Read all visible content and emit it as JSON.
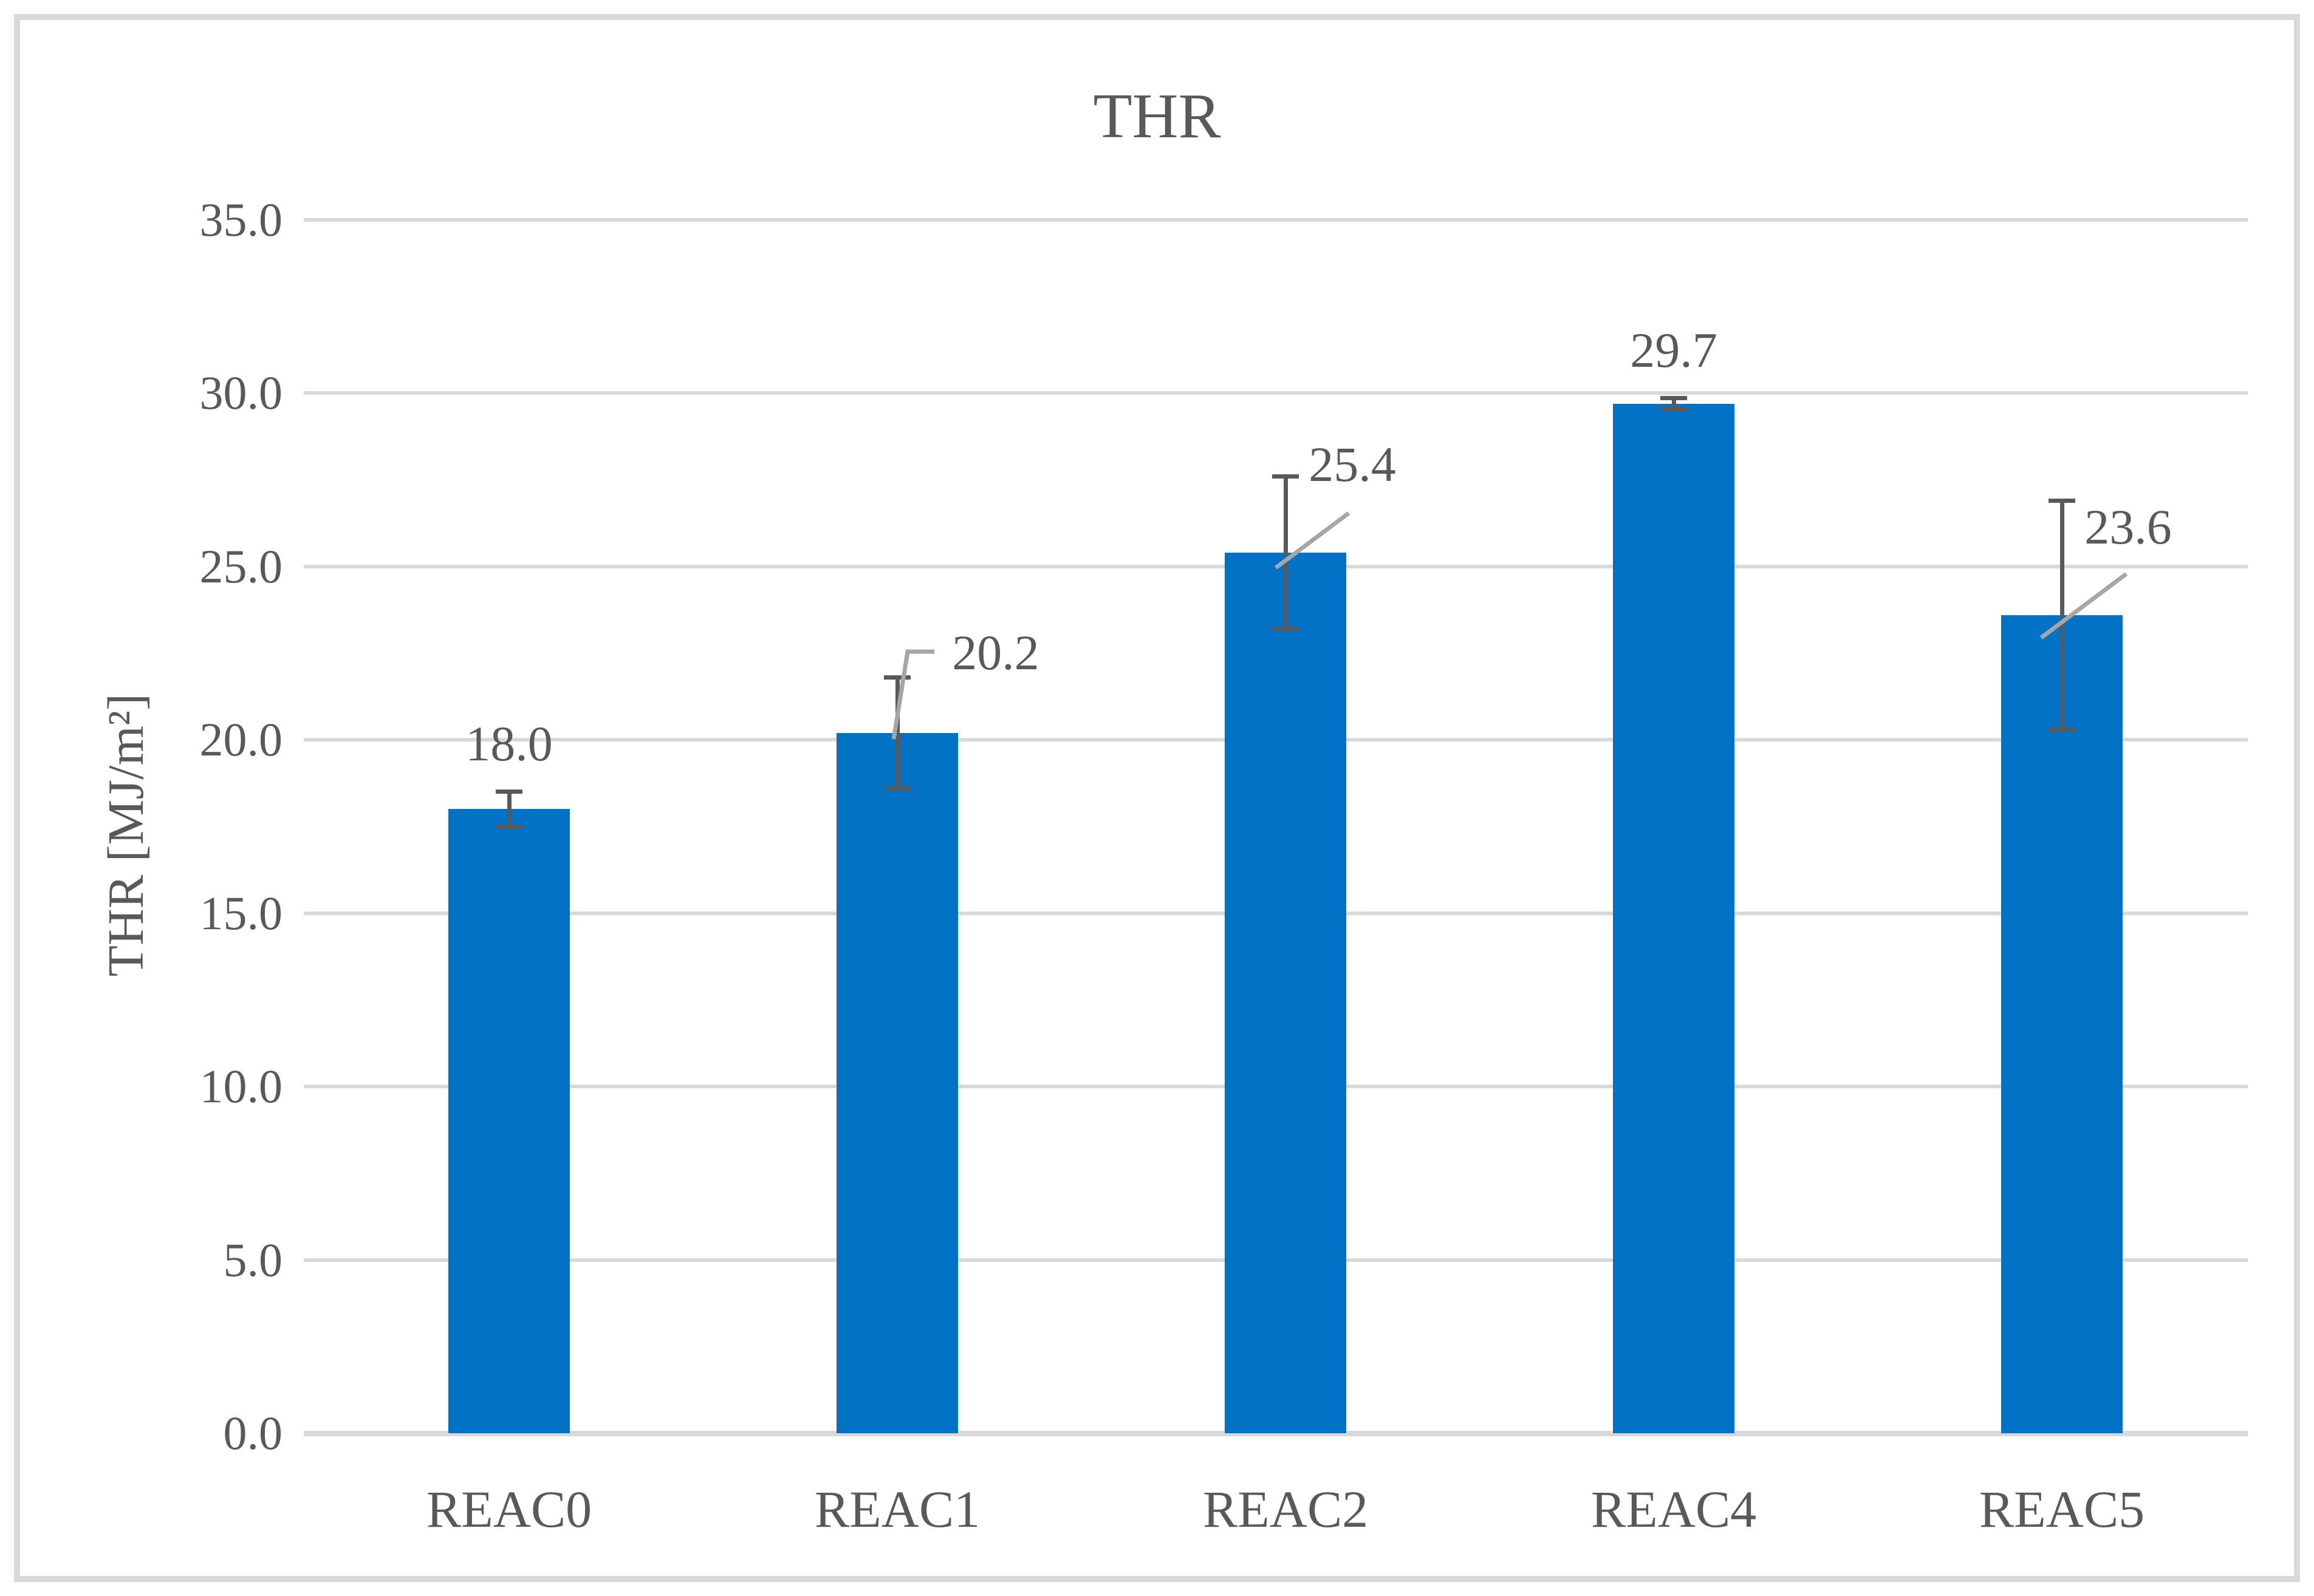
{
  "chart_data": {
    "type": "bar",
    "title": "THR",
    "ylabel": "THR [MJ/m²]",
    "xlabel": "",
    "categories": [
      "REAC0",
      "REAC1",
      "REAC2",
      "REAC4",
      "REAC5"
    ],
    "values": [
      18.0,
      20.2,
      25.4,
      29.7,
      23.6
    ],
    "data_labels": [
      "18.0",
      "20.2",
      "25.4",
      "29.7",
      "23.6"
    ],
    "error_bars": [
      0.5,
      1.6,
      2.2,
      0.15,
      3.3
    ],
    "y_ticks": [
      "35.0",
      "30.0",
      "25.0",
      "20.0",
      "15.0",
      "10.0",
      "5.0",
      "0.0"
    ],
    "ylim": [
      0,
      35
    ],
    "y_tick_step": 5,
    "grid": true,
    "legend_position": "none",
    "label_placement": [
      "above",
      "offset",
      "offset",
      "above",
      "offset"
    ],
    "colors": {
      "bar": "#0272C6",
      "gridline": "#D9D9D9",
      "axis_line": "#D9D9D9",
      "text": "#595959",
      "error_bar": "#595959",
      "leader_line": "#A6A6A6",
      "border": "#D9D9D9",
      "background": "#FFFFFF"
    }
  }
}
